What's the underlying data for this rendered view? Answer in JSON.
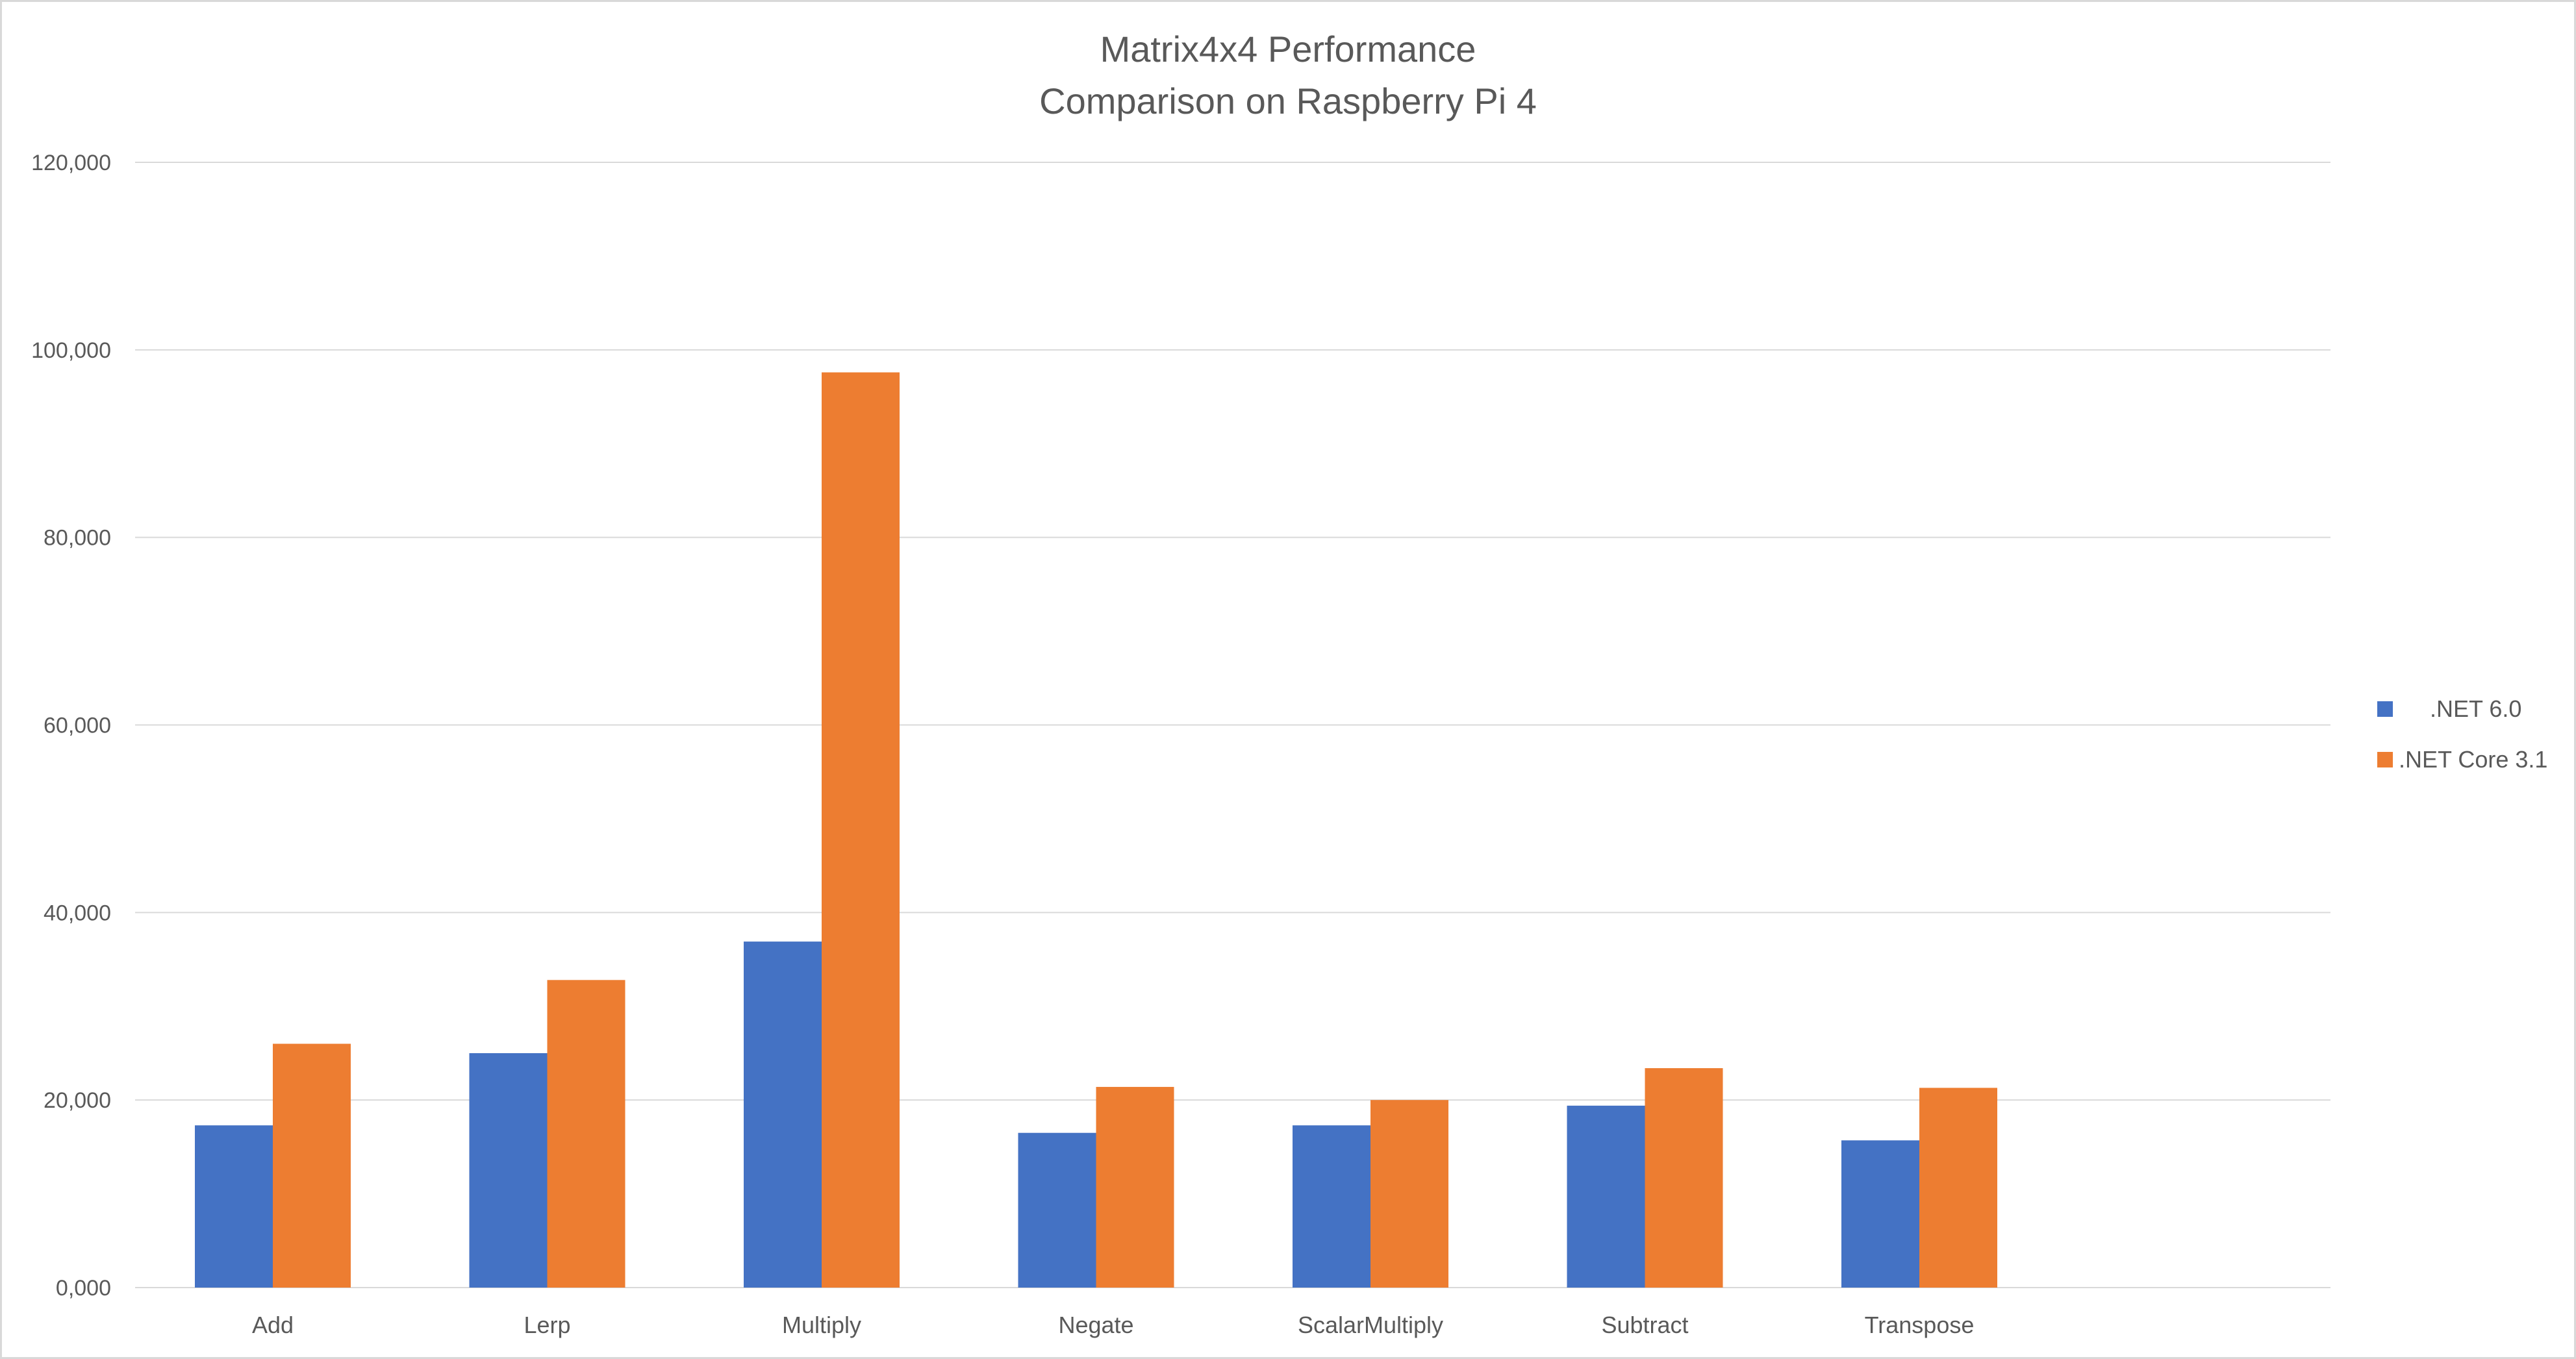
{
  "chart_data": {
    "type": "bar",
    "title": [
      "Matrix4x4 Performance",
      "Comparison on Raspberry Pi 4"
    ],
    "xlabel": "",
    "ylabel": "",
    "ylim": [
      0,
      120000
    ],
    "ytick_step": 20000,
    "ytick_labels": [
      "0,000",
      "20,000",
      "40,000",
      "60,000",
      "80,000",
      "100,000",
      "120,000"
    ],
    "grid": true,
    "legend_position": "right",
    "categories": [
      "Add",
      "Lerp",
      "Multiply",
      "Negate",
      "ScalarMultiply",
      "Subtract",
      "Transpose"
    ],
    "series": [
      {
        "name": ".NET 6.0",
        "color": "#4472c4",
        "values": [
          17300,
          25000,
          36900,
          16500,
          17300,
          19400,
          15700
        ]
      },
      {
        "name": ".NET Core 3.1",
        "color": "#ed7d31",
        "values": [
          26000,
          32800,
          97600,
          21400,
          20000,
          23400,
          21300
        ]
      }
    ]
  }
}
